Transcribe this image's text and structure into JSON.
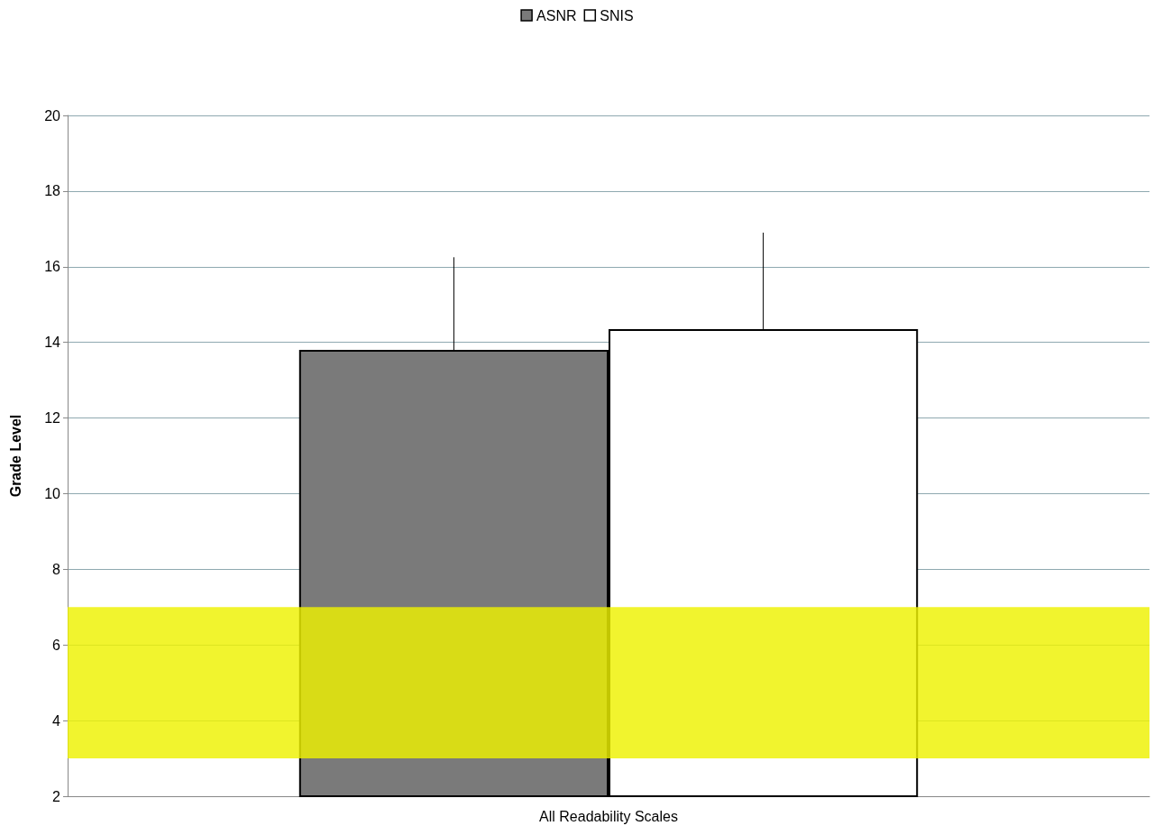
{
  "chart_data": {
    "type": "bar",
    "ylabel": "Grade Level",
    "categories": [
      "All Readability Scales"
    ],
    "series": [
      {
        "name": "ASNR",
        "color": "#7a7a7a",
        "values": [
          13.8
        ],
        "errors": [
          [
            13.8,
            16.25
          ]
        ]
      },
      {
        "name": "SNIS",
        "color": "#ffffff",
        "values": [
          14.35
        ],
        "errors": [
          [
            14.35,
            16.9
          ]
        ]
      }
    ],
    "ylim": [
      2,
      20
    ],
    "yticks": [
      2,
      4,
      6,
      8,
      10,
      12,
      14,
      16,
      18,
      20
    ],
    "grid": "y",
    "legend": "top",
    "bands": [
      {
        "axis": "y",
        "from": 3,
        "to": 7,
        "color": "#eef200"
      }
    ]
  }
}
